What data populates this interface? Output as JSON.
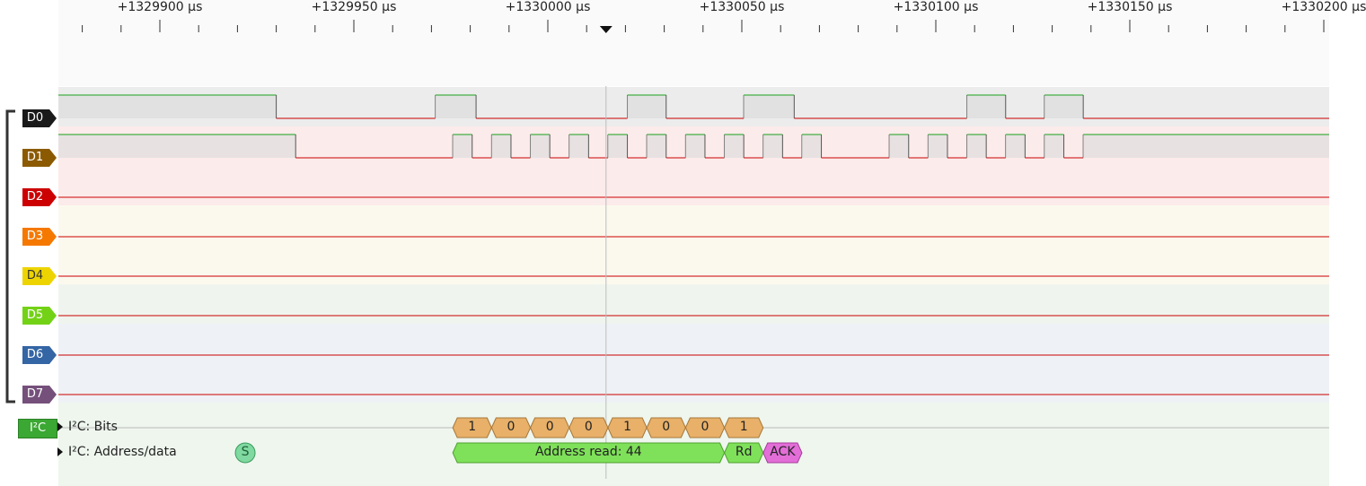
{
  "ruler": {
    "ticks": [
      {
        "label": "+1329900 µs",
        "time": 1329900
      },
      {
        "label": "+1329950 µs",
        "time": 1329950
      },
      {
        "label": "+1330000 µs",
        "time": 1330000
      },
      {
        "label": "+1330050 µs",
        "time": 1330050
      },
      {
        "label": "+1330100 µs",
        "time": 1330100
      },
      {
        "label": "+1330150 µs",
        "time": 1330150
      },
      {
        "label": "+1330200 µs",
        "time": 1330200
      }
    ],
    "cursor_time": 1330015
  },
  "channels": [
    {
      "name": "D0",
      "color": "#1a1a1a",
      "bg": "#ececec",
      "transitions": [
        {
          "t": 1329865,
          "v": 1
        },
        {
          "t": 1329930,
          "v": 0
        },
        {
          "t": 1329971,
          "v": 1
        },
        {
          "t": 1329981.5,
          "v": 0
        },
        {
          "t": 1330020.5,
          "v": 1
        },
        {
          "t": 1330030.5,
          "v": 0
        },
        {
          "t": 1330050.5,
          "v": 1
        },
        {
          "t": 1330063.5,
          "v": 0
        },
        {
          "t": 1330108,
          "v": 1
        },
        {
          "t": 1330118,
          "v": 0
        },
        {
          "t": 1330128,
          "v": 1
        },
        {
          "t": 1330138,
          "v": 0
        }
      ]
    },
    {
      "name": "D1",
      "color": "#8b5a00",
      "bg": "#fcebeb",
      "transitions": [
        {
          "t": 1329865,
          "v": 1
        },
        {
          "t": 1329935,
          "v": 0
        },
        {
          "t": 1329975.5,
          "v": 1
        },
        {
          "t": 1329980.5,
          "v": 0
        },
        {
          "t": 1329985.5,
          "v": 1
        },
        {
          "t": 1329990.5,
          "v": 0
        },
        {
          "t": 1329995.5,
          "v": 1
        },
        {
          "t": 1330000.5,
          "v": 0
        },
        {
          "t": 1330005.5,
          "v": 1
        },
        {
          "t": 1330010.5,
          "v": 0
        },
        {
          "t": 1330015.5,
          "v": 1
        },
        {
          "t": 1330020.5,
          "v": 0
        },
        {
          "t": 1330025.5,
          "v": 1
        },
        {
          "t": 1330030.5,
          "v": 0
        },
        {
          "t": 1330035.5,
          "v": 1
        },
        {
          "t": 1330040.5,
          "v": 0
        },
        {
          "t": 1330045.5,
          "v": 1
        },
        {
          "t": 1330050.5,
          "v": 0
        },
        {
          "t": 1330055.5,
          "v": 1
        },
        {
          "t": 1330060.5,
          "v": 0
        },
        {
          "t": 1330065.5,
          "v": 1
        },
        {
          "t": 1330070.5,
          "v": 0
        },
        {
          "t": 1330088,
          "v": 1
        },
        {
          "t": 1330093,
          "v": 0
        },
        {
          "t": 1330098,
          "v": 1
        },
        {
          "t": 1330103,
          "v": 0
        },
        {
          "t": 1330108,
          "v": 1
        },
        {
          "t": 1330113,
          "v": 0
        },
        {
          "t": 1330118,
          "v": 1
        },
        {
          "t": 1330123,
          "v": 0
        },
        {
          "t": 1330128,
          "v": 1
        },
        {
          "t": 1330133,
          "v": 0
        },
        {
          "t": 1330138,
          "v": 1
        }
      ]
    },
    {
      "name": "D2",
      "color": "#cc0000",
      "bg": "#fcebeb",
      "transitions": [
        {
          "t": 1329865,
          "v": 0
        }
      ]
    },
    {
      "name": "D3",
      "color": "#f57900",
      "bg": "#fbf9ee",
      "transitions": [
        {
          "t": 1329865,
          "v": 0
        }
      ]
    },
    {
      "name": "D4",
      "color": "#edd400",
      "bg": "#fbf9ee",
      "transitions": [
        {
          "t": 1329865,
          "v": 0
        }
      ]
    },
    {
      "name": "D5",
      "color": "#73d216",
      "bg": "#eff5ee",
      "transitions": [
        {
          "t": 1329865,
          "v": 0
        }
      ]
    },
    {
      "name": "D6",
      "color": "#3465a4",
      "bg": "#eef2f6",
      "transitions": [
        {
          "t": 1329865,
          "v": 0
        }
      ]
    },
    {
      "name": "D7",
      "color": "#75507b",
      "bg": "#eef2f6",
      "transitions": [
        {
          "t": 1329865,
          "v": 0
        }
      ]
    }
  ],
  "decoder": {
    "badge": "I²C",
    "color": "#3aa832",
    "rows": [
      {
        "title": "I²C: Bits",
        "annotations": [
          {
            "text": "1",
            "t0": 1329975.5,
            "t1": 1329985.5,
            "color": "#e8b068"
          },
          {
            "text": "0",
            "t0": 1329985.5,
            "t1": 1329995.5,
            "color": "#e8b068"
          },
          {
            "text": "0",
            "t0": 1329995.5,
            "t1": 1330005.5,
            "color": "#e8b068"
          },
          {
            "text": "0",
            "t0": 1330005.5,
            "t1": 1330015.5,
            "color": "#e8b068"
          },
          {
            "text": "1",
            "t0": 1330015.5,
            "t1": 1330025.5,
            "color": "#e8b068"
          },
          {
            "text": "0",
            "t0": 1330025.5,
            "t1": 1330035.5,
            "color": "#e8b068"
          },
          {
            "text": "0",
            "t0": 1330035.5,
            "t1": 1330045.5,
            "color": "#e8b068"
          },
          {
            "text": "1",
            "t0": 1330045.5,
            "t1": 1330055.5,
            "color": "#e8b068"
          }
        ]
      },
      {
        "title": "I²C: Address/data",
        "annotations": [
          {
            "text": "S",
            "circle": true,
            "t": 1329922,
            "color": "#7fd9a0"
          },
          {
            "text": "Address read: 44",
            "t0": 1329975.5,
            "t1": 1330045.5,
            "color": "#7fe05a"
          },
          {
            "text": "Rd",
            "t0": 1330045.5,
            "t1": 1330055.5,
            "color": "#7fe05a"
          },
          {
            "text": "ACK",
            "t0": 1330055.5,
            "t1": 1330065.5,
            "color": "#e36ed8"
          }
        ]
      }
    ]
  },
  "colors": {
    "high": "#1aa11a",
    "low": "#cc0000",
    "ruler_bg": "#fafafa",
    "bracket": "#333333"
  }
}
